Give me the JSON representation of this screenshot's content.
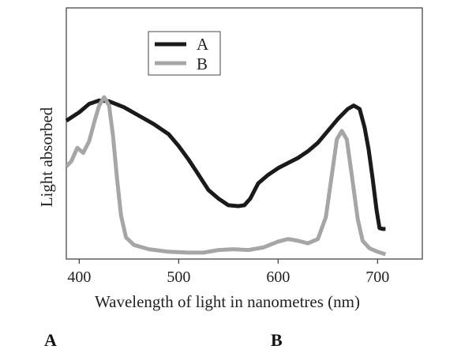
{
  "chart_data": {
    "type": "line",
    "xlabel": "Wavelength of light in nanometres (nm)",
    "ylabel": "Light absorbed",
    "xlim": [
      387,
      745
    ],
    "ylim": [
      0,
      1
    ],
    "x_ticks": [
      400,
      500,
      600,
      700
    ],
    "legend_position": "top-center",
    "grid": false,
    "series": [
      {
        "name": "A",
        "color": "#1a1a1a",
        "points": [
          [
            387,
            0.79
          ],
          [
            400,
            0.84
          ],
          [
            410,
            0.89
          ],
          [
            420,
            0.91
          ],
          [
            430,
            0.905
          ],
          [
            445,
            0.87
          ],
          [
            460,
            0.82
          ],
          [
            475,
            0.77
          ],
          [
            490,
            0.71
          ],
          [
            500,
            0.64
          ],
          [
            510,
            0.56
          ],
          [
            520,
            0.47
          ],
          [
            530,
            0.38
          ],
          [
            540,
            0.33
          ],
          [
            550,
            0.29
          ],
          [
            560,
            0.285
          ],
          [
            566,
            0.29
          ],
          [
            572,
            0.33
          ],
          [
            580,
            0.42
          ],
          [
            590,
            0.47
          ],
          [
            600,
            0.51
          ],
          [
            610,
            0.54
          ],
          [
            620,
            0.57
          ],
          [
            630,
            0.61
          ],
          [
            640,
            0.66
          ],
          [
            650,
            0.73
          ],
          [
            660,
            0.8
          ],
          [
            670,
            0.86
          ],
          [
            676,
            0.88
          ],
          [
            682,
            0.86
          ],
          [
            687,
            0.75
          ],
          [
            691,
            0.62
          ],
          [
            695,
            0.45
          ],
          [
            699,
            0.26
          ],
          [
            702,
            0.155
          ],
          [
            705,
            0.15
          ],
          [
            708,
            0.15
          ]
        ]
      },
      {
        "name": "B",
        "color": "#a6a6a6",
        "points": [
          [
            387,
            0.52
          ],
          [
            392,
            0.55
          ],
          [
            398,
            0.63
          ],
          [
            404,
            0.6
          ],
          [
            410,
            0.67
          ],
          [
            415,
            0.78
          ],
          [
            420,
            0.88
          ],
          [
            425,
            0.93
          ],
          [
            430,
            0.88
          ],
          [
            434,
            0.7
          ],
          [
            438,
            0.45
          ],
          [
            442,
            0.23
          ],
          [
            447,
            0.1
          ],
          [
            455,
            0.055
          ],
          [
            470,
            0.03
          ],
          [
            490,
            0.015
          ],
          [
            510,
            0.01
          ],
          [
            525,
            0.01
          ],
          [
            540,
            0.025
          ],
          [
            555,
            0.03
          ],
          [
            570,
            0.025
          ],
          [
            585,
            0.04
          ],
          [
            600,
            0.075
          ],
          [
            610,
            0.09
          ],
          [
            620,
            0.08
          ],
          [
            630,
            0.065
          ],
          [
            640,
            0.09
          ],
          [
            648,
            0.22
          ],
          [
            654,
            0.47
          ],
          [
            659,
            0.68
          ],
          [
            664,
            0.73
          ],
          [
            669,
            0.68
          ],
          [
            674,
            0.47
          ],
          [
            680,
            0.21
          ],
          [
            685,
            0.08
          ],
          [
            692,
            0.035
          ],
          [
            700,
            0.015
          ],
          [
            708,
            0.0
          ]
        ]
      }
    ]
  },
  "footer": {
    "left_label": "A",
    "right_label": "B"
  }
}
